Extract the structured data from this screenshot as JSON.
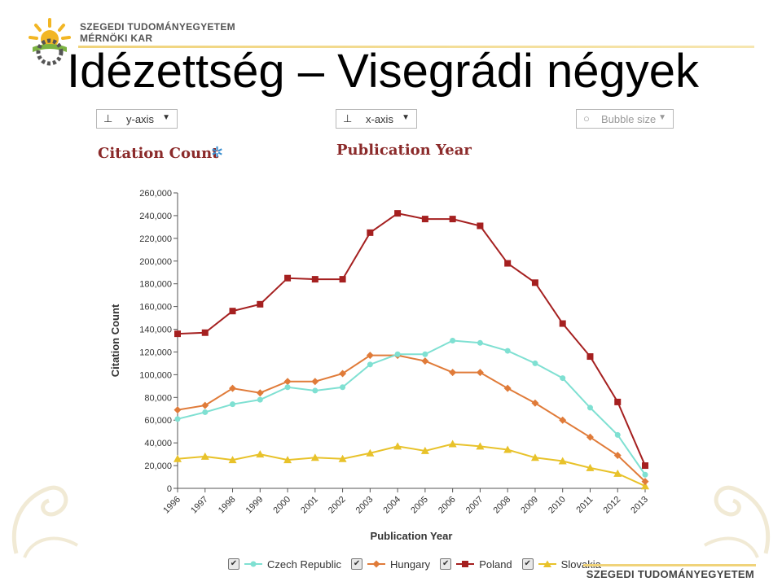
{
  "header": {
    "university_line1": "SZEGEDI TUDOMÁNYEGYETEM",
    "university_line2": "MÉRNÖKI KAR",
    "title": "Idézettség – Visegrádi négyek"
  },
  "controls": {
    "y_axis_picker": "y-axis",
    "x_axis_picker": "x-axis",
    "bubble_size_picker": "Bubble size"
  },
  "headings": {
    "y_metric": "Citation Count",
    "x_metric": "Publication Year"
  },
  "footer": {
    "brand": "SZEGEDI TUDOMÁNYEGYETEM"
  },
  "chart_data": {
    "type": "line",
    "xlabel": "Publication Year",
    "ylabel": "Citation Count",
    "ylim": [
      0,
      260000
    ],
    "yticks": [
      0,
      20000,
      40000,
      60000,
      80000,
      100000,
      120000,
      140000,
      160000,
      180000,
      200000,
      220000,
      240000,
      260000
    ],
    "ytick_labels": [
      "0",
      "20,000",
      "40,000",
      "60,000",
      "80,000",
      "100,000",
      "120,000",
      "140,000",
      "160,000",
      "180,000",
      "200,000",
      "220,000",
      "240,000",
      "260,000"
    ],
    "categories": [
      "1996",
      "1997",
      "1998",
      "1999",
      "2000",
      "2001",
      "2002",
      "2003",
      "2004",
      "2005",
      "2006",
      "2007",
      "2008",
      "2009",
      "2010",
      "2011",
      "2012",
      "2013"
    ],
    "grid": false,
    "legend_position": "bottom",
    "series": [
      {
        "name": "Czech Republic",
        "color": "#7fe0d2",
        "marker": "circle",
        "values": [
          61000,
          67000,
          74000,
          78000,
          89000,
          86000,
          89000,
          109000,
          118000,
          118000,
          130000,
          128000,
          121000,
          110000,
          97000,
          71000,
          47000,
          12000
        ]
      },
      {
        "name": "Hungary",
        "color": "#e07b39",
        "marker": "diamond",
        "values": [
          69000,
          73000,
          88000,
          84000,
          94000,
          94000,
          101000,
          117000,
          117000,
          112000,
          102000,
          102000,
          88000,
          75000,
          60000,
          45000,
          29000,
          6000
        ]
      },
      {
        "name": "Poland",
        "color": "#a52020",
        "marker": "square",
        "values": [
          136000,
          137000,
          156000,
          162000,
          185000,
          184000,
          184000,
          225000,
          242000,
          237000,
          237000,
          231000,
          198000,
          181000,
          145000,
          116000,
          76000,
          20000
        ]
      },
      {
        "name": "Slovakia",
        "color": "#e8c22a",
        "marker": "triangle",
        "values": [
          26000,
          28000,
          25000,
          30000,
          25000,
          27000,
          26000,
          31000,
          37000,
          33000,
          39000,
          37000,
          34000,
          27000,
          24000,
          18000,
          13000,
          2000
        ]
      }
    ]
  }
}
